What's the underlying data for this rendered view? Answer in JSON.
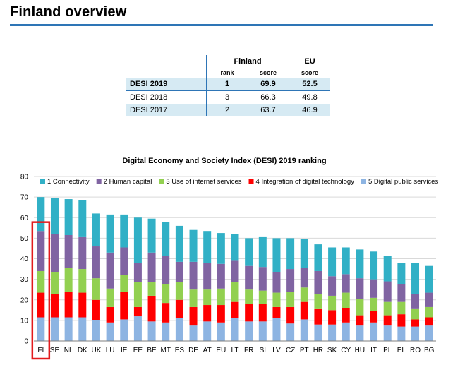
{
  "page": {
    "title": "Finland overview"
  },
  "summary_table": {
    "group_headers": {
      "finland": "Finland",
      "eu": "EU"
    },
    "sub_headers": {
      "rank": "rank",
      "score": "score",
      "eu_score": "score"
    },
    "rows": [
      {
        "label": "DESI 2019",
        "rank": "1",
        "score": "69.9",
        "eu": "52.5"
      },
      {
        "label": "DESI 2018",
        "rank": "3",
        "score": "66.3",
        "eu": "49.8"
      },
      {
        "label": "DESI 2017",
        "rank": "2",
        "score": "63.7",
        "eu": "46.9"
      }
    ]
  },
  "chart_data": {
    "type": "bar",
    "stacked": true,
    "title": "Digital Economy and Society Index (DESI) 2019 ranking",
    "xlabel": "",
    "ylabel": "",
    "ylim": [
      0,
      80
    ],
    "yticks": [
      0,
      10,
      20,
      30,
      40,
      50,
      60,
      70,
      80
    ],
    "grid": true,
    "legend_position": "top",
    "highlight_category": "FI",
    "highlight_color": "#e31a1c",
    "categories": [
      "FI",
      "SE",
      "NL",
      "DK",
      "UK",
      "LU",
      "IE",
      "EE",
      "BE",
      "MT",
      "ES",
      "DE",
      "AT",
      "EU",
      "LT",
      "FR",
      "SI",
      "LV",
      "CZ",
      "PT",
      "HR",
      "SK",
      "CY",
      "HU",
      "IT",
      "PL",
      "EL",
      "RO",
      "BG"
    ],
    "series": [
      {
        "name": "5 Digital public services",
        "color": "#8db4e2",
        "values": [
          11.5,
          11.5,
          11.5,
          11.5,
          10,
          9,
          10.5,
          12,
          9.5,
          9,
          11,
          7.5,
          9.5,
          9,
          11,
          9.5,
          9.5,
          11,
          8.5,
          10.5,
          8,
          8,
          9,
          7.5,
          9,
          7.5,
          7,
          7,
          7.5
        ]
      },
      {
        "name": "4 Integration of digital technology",
        "color": "#ff0000",
        "values": [
          12,
          11.5,
          12.5,
          12,
          10,
          7.5,
          13.5,
          4.5,
          12.5,
          9.5,
          9,
          9,
          8,
          8.5,
          8,
          8.5,
          8.5,
          5.5,
          8,
          8.5,
          7.5,
          7,
          7,
          5,
          5.5,
          5,
          6,
          3.5,
          4
        ]
      },
      {
        "name": "3 Use of internet services",
        "color": "#92d050",
        "values": [
          10.5,
          10.5,
          11.5,
          11.5,
          10.5,
          9,
          8,
          12,
          6.5,
          9,
          8.5,
          8.5,
          7.5,
          8,
          9.5,
          7,
          6.5,
          7,
          7.5,
          7,
          7.5,
          7,
          7.5,
          8,
          6.5,
          6.5,
          6,
          5,
          5
        ]
      },
      {
        "name": "2 Human capital",
        "color": "#8064a2",
        "values": [
          19.5,
          18.5,
          16,
          15.5,
          15.5,
          17.5,
          13.5,
          9.5,
          14.5,
          14,
          10,
          13.5,
          13,
          12,
          10.5,
          11.5,
          11.5,
          10,
          11,
          9.5,
          11,
          9.5,
          9,
          10,
          9,
          10,
          8.5,
          7.5,
          7
        ]
      },
      {
        "name": "1 Connectivity",
        "color": "#31b0c6",
        "values": [
          16.5,
          17.5,
          17.5,
          18,
          16,
          18.5,
          16,
          22,
          16.5,
          16.5,
          17.5,
          15.5,
          15.5,
          15,
          13,
          13.5,
          14.5,
          16.5,
          15,
          14,
          13,
          14,
          13,
          14,
          13.5,
          12.5,
          10.5,
          15,
          13
        ]
      }
    ]
  }
}
